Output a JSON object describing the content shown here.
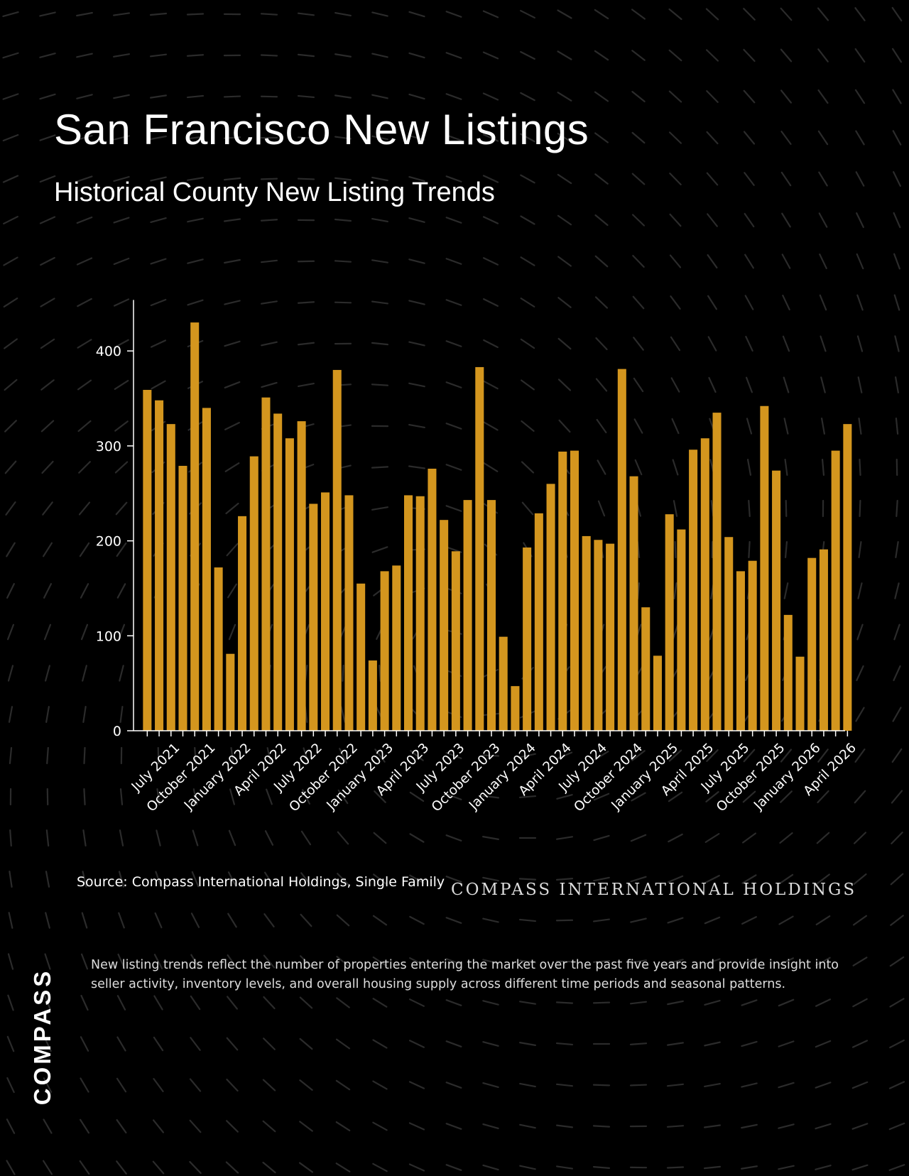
{
  "header": {
    "title": "San Francisco New Listings",
    "subtitle": "Historical County New Listing Trends"
  },
  "footer": {
    "source": "Source: Compass International Holdings, Single Family",
    "brand_line": "COMPASS INTERNATIONAL HOLDINGS",
    "description": "New listing trends reflect the number of properties entering the market over the past five years and provide insight into seller activity, inventory levels, and overall housing supply across different time periods and seasonal patterns.",
    "logo": "COMPASS"
  },
  "colors": {
    "background": "#000000",
    "bar": "#D4961E",
    "axis": "#FFFFFF",
    "pattern": "#2B2B2B"
  },
  "chart_data": {
    "type": "bar",
    "title": "",
    "xlabel": "",
    "ylabel": "",
    "ylim": [
      0,
      450
    ],
    "yticks": [
      0,
      100,
      200,
      300,
      400
    ],
    "grid": false,
    "categories": [
      "May 2021",
      "June 2021",
      "July 2021",
      "August 2021",
      "September 2021",
      "October 2021",
      "November 2021",
      "December 2021",
      "January 2022",
      "February 2022",
      "March 2022",
      "April 2022",
      "May 2022",
      "June 2022",
      "July 2022",
      "August 2022",
      "September 2022",
      "October 2022",
      "November 2022",
      "December 2022",
      "January 2023",
      "February 2023",
      "March 2023",
      "April 2023",
      "May 2023",
      "June 2023",
      "July 2023",
      "August 2023",
      "September 2023",
      "October 2023",
      "November 2023",
      "December 2023",
      "January 2024",
      "February 2024",
      "March 2024",
      "April 2024",
      "May 2024",
      "June 2024",
      "July 2024",
      "August 2024",
      "September 2024",
      "October 2024",
      "November 2024",
      "December 2024",
      "January 2025",
      "February 2025",
      "March 2025",
      "April 2025",
      "May 2025",
      "June 2025",
      "July 2025",
      "August 2025",
      "September 2025",
      "October 2025",
      "November 2025",
      "December 2025",
      "January 2026",
      "February 2026",
      "March 2026",
      "April 2026"
    ],
    "tick_labels": [
      "July 2021",
      "October 2021",
      "January 2022",
      "April 2022",
      "July 2022",
      "October 2022",
      "January 2023",
      "April 2023",
      "July 2023",
      "October 2023",
      "January 2024",
      "April 2024",
      "July 2024",
      "October 2024",
      "January 2025",
      "April 2025",
      "July 2025",
      "October 2025",
      "January 2026",
      "April 2026"
    ],
    "values": [
      359,
      348,
      323,
      279,
      430,
      340,
      172,
      81,
      226,
      289,
      351,
      334,
      308,
      326,
      239,
      251,
      380,
      248,
      155,
      74,
      168,
      174,
      248,
      247,
      276,
      222,
      189,
      243,
      383,
      243,
      99,
      47,
      193,
      229,
      260,
      294,
      295,
      205,
      201,
      197,
      381,
      268,
      130,
      79,
      228,
      212,
      296,
      308,
      335,
      204,
      168,
      179,
      342,
      274,
      122,
      78,
      182,
      191,
      295,
      323
    ]
  }
}
